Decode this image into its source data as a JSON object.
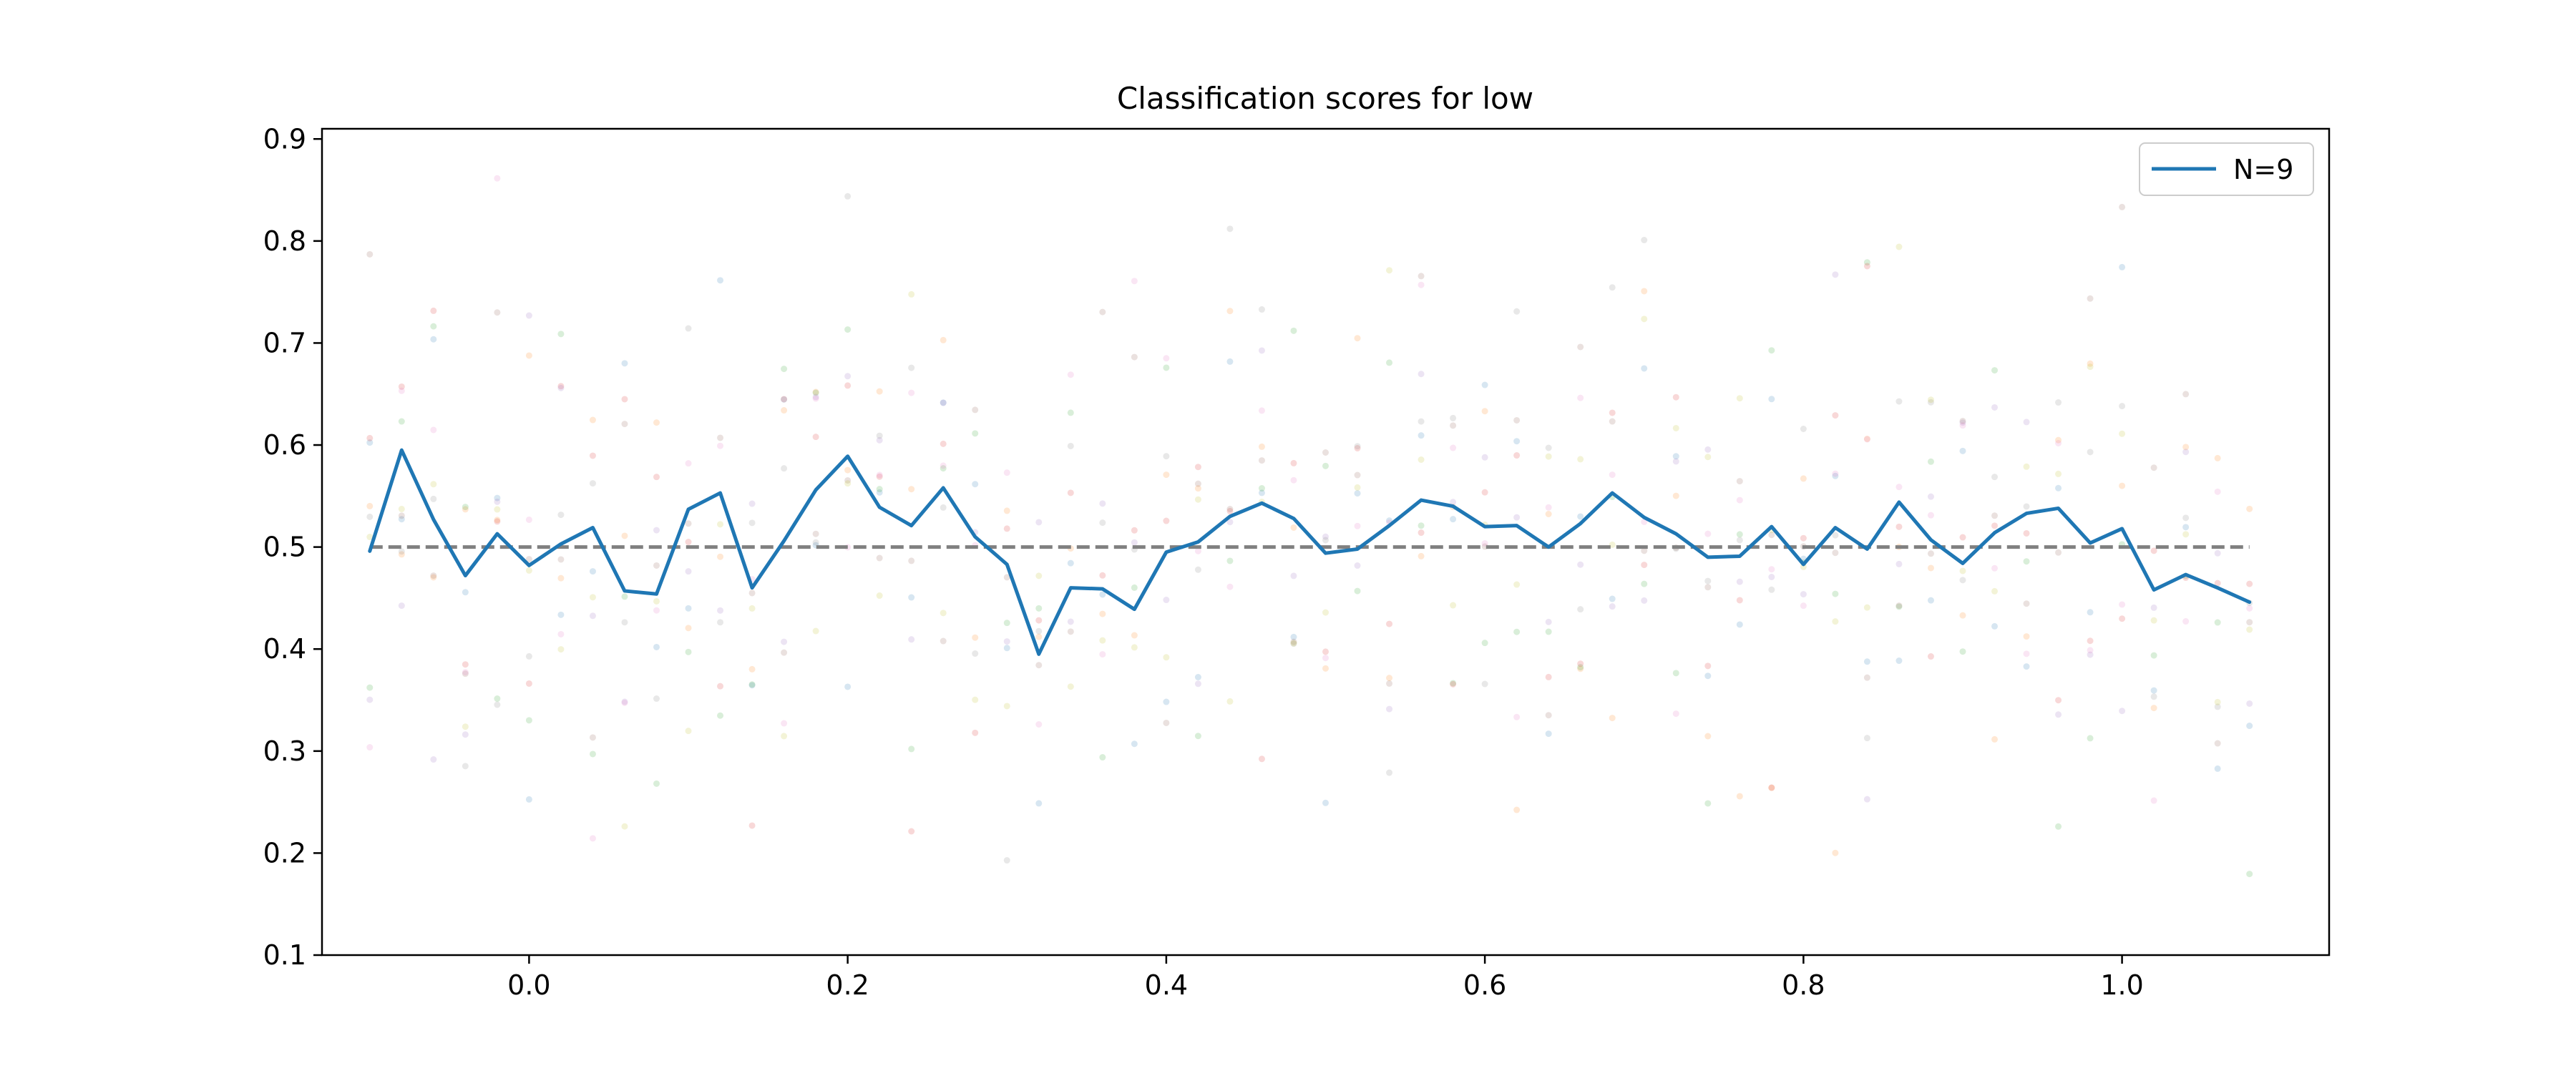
{
  "chart_data": {
    "type": "line",
    "title": "Classification scores for low",
    "xlabel": "",
    "ylabel": "",
    "xlim": [
      -0.13,
      1.13
    ],
    "ylim": [
      0.1,
      0.91
    ],
    "xticks": [
      0.0,
      0.2,
      0.4,
      0.6,
      0.8,
      1.0
    ],
    "xtick_labels": [
      "0.0",
      "0.2",
      "0.4",
      "0.6",
      "0.8",
      "1.0"
    ],
    "yticks": [
      0.1,
      0.2,
      0.3,
      0.4,
      0.5,
      0.6,
      0.7,
      0.8,
      0.9
    ],
    "ytick_labels": [
      "0.1",
      "0.2",
      "0.3",
      "0.4",
      "0.5",
      "0.6",
      "0.7",
      "0.8",
      "0.9"
    ],
    "grid": false,
    "legend": {
      "placement": "top-right",
      "entries": [
        "N=9"
      ]
    },
    "series": [
      {
        "name": "N=9",
        "color": "#1f77b4",
        "x": [
          -0.1,
          -0.08,
          -0.06,
          -0.04,
          -0.02,
          0.0,
          0.02,
          0.04,
          0.06,
          0.08,
          0.1,
          0.12,
          0.14,
          0.16,
          0.18,
          0.2,
          0.22,
          0.24,
          0.26,
          0.28,
          0.3,
          0.32,
          0.34,
          0.36,
          0.38,
          0.4,
          0.42,
          0.44,
          0.46,
          0.48,
          0.5,
          0.52,
          0.54,
          0.56,
          0.58,
          0.6,
          0.62,
          0.64,
          0.66,
          0.68,
          0.7,
          0.72,
          0.74,
          0.76,
          0.78,
          0.8,
          0.82,
          0.84,
          0.86,
          0.88,
          0.9,
          0.92,
          0.94,
          0.96,
          0.98,
          1.0,
          1.02,
          1.04,
          1.06,
          1.08
        ],
        "y": [
          0.496,
          0.595,
          0.527,
          0.472,
          0.513,
          0.482,
          0.503,
          0.519,
          0.457,
          0.454,
          0.537,
          0.553,
          0.46,
          0.506,
          0.556,
          0.589,
          0.539,
          0.521,
          0.558,
          0.51,
          0.483,
          0.395,
          0.46,
          0.459,
          0.439,
          0.495,
          0.505,
          0.53,
          0.543,
          0.528,
          0.494,
          0.498,
          0.521,
          0.546,
          0.54,
          0.52,
          0.521,
          0.5,
          0.523,
          0.553,
          0.529,
          0.513,
          0.49,
          0.491,
          0.52,
          0.483,
          0.519,
          0.498,
          0.544,
          0.507,
          0.484,
          0.514,
          0.533,
          0.538,
          0.504,
          0.518,
          0.458,
          0.473,
          0.46,
          0.446
        ]
      }
    ],
    "reference_line": {
      "y": 0.5,
      "style": "dashed",
      "color": "#808080"
    },
    "scatter_overlay": {
      "description_colors": [
        "#1f77b4",
        "#ff7f0e",
        "#2ca02c",
        "#d62728",
        "#9467bd",
        "#8c564b",
        "#e377c2",
        "#7f7f7f",
        "#bcbd22"
      ],
      "opacity": 0.18,
      "points_per_x": 9,
      "seed": 7
    }
  }
}
